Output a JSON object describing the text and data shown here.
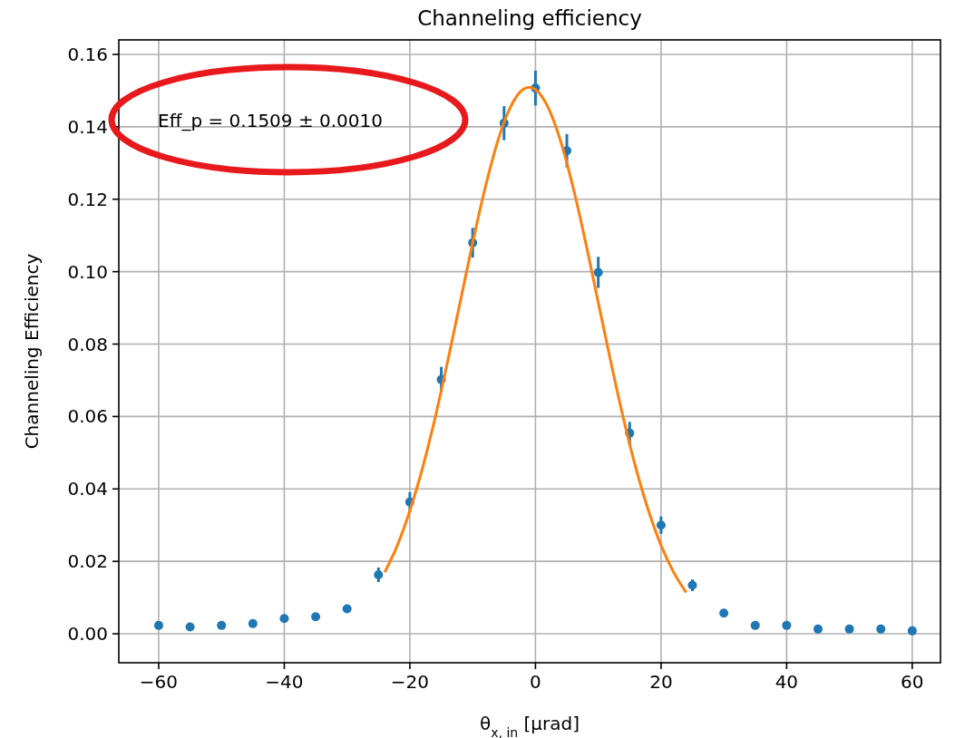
{
  "chart_data": {
    "type": "scatter",
    "title": "Channeling efficiency",
    "xlabel": "θ$_{x, in}$ [μrad]",
    "ylabel": "Channeling Efficiency",
    "annotations": [
      "Eff_p = 0.1509 ± 0.0010"
    ],
    "xlim": [
      -66.35,
      64.5
    ],
    "xticks": [
      -60,
      -40,
      -20,
      0,
      20,
      40,
      60
    ],
    "ylim": [
      -0.008,
      0.164
    ],
    "yticks": [
      {
        "value": 0,
        "label": "0.00"
      },
      {
        "value": 0.02,
        "label": "0.02"
      },
      {
        "value": 0.04,
        "label": "0.04"
      },
      {
        "value": 0.06,
        "label": "0.06"
      },
      {
        "value": 0.08,
        "label": "0.08"
      },
      {
        "value": 0.1,
        "label": "0.10"
      },
      {
        "value": 0.12,
        "label": "0.12"
      },
      {
        "value": 0.14,
        "label": "0.14"
      },
      {
        "value": 0.16,
        "label": "0.16"
      }
    ],
    "grid": true,
    "marker": "circle",
    "series": [
      {
        "color": "#1f77b4",
        "x": [
          -60,
          -55,
          -50,
          -45,
          -40,
          -35,
          -30,
          -25,
          -20,
          -15,
          -10,
          -5,
          0,
          5,
          10,
          15,
          20,
          25,
          30,
          35,
          40,
          45,
          50,
          55,
          60
        ],
        "values": [
          0.0023,
          0.0019,
          0.0023,
          0.0028,
          0.0042,
          0.0047,
          0.0069,
          0.0163,
          0.0364,
          0.0702,
          0.108,
          0.141,
          0.1507,
          0.1334,
          0.0998,
          0.0554,
          0.03,
          0.0134,
          0.0057,
          0.0023,
          0.0023,
          0.0013,
          0.0013,
          0.0013,
          0.0008
        ],
        "errors": [
          null,
          null,
          null,
          null,
          null,
          0.0005,
          0.0009,
          0.002,
          0.0027,
          0.0035,
          0.0041,
          0.0047,
          0.0048,
          0.0046,
          0.0043,
          0.0031,
          0.0024,
          0.0016,
          0.001,
          null,
          null,
          null,
          null,
          null,
          null
        ]
      },
      {
        "type": "line",
        "color": "#ff7f0e",
        "marker": "none",
        "x": [
          -24,
          -22,
          -20,
          -18,
          -16,
          -14,
          -12,
          -10,
          -8,
          -6,
          -4,
          -2,
          -1,
          0,
          2,
          4,
          6,
          8,
          10,
          12,
          14,
          16,
          18,
          20,
          22,
          24
        ],
        "values": [
          0.017,
          0.0244,
          0.034,
          0.0457,
          0.0595,
          0.0751,
          0.0915,
          0.108,
          0.1232,
          0.1361,
          0.1454,
          0.1503,
          0.1509,
          0.1503,
          0.1454,
          0.1361,
          0.1232,
          0.108,
          0.0915,
          0.0751,
          0.0595,
          0.0457,
          0.034,
          0.0244,
          0.017,
          0.0114
        ]
      }
    ]
  }
}
